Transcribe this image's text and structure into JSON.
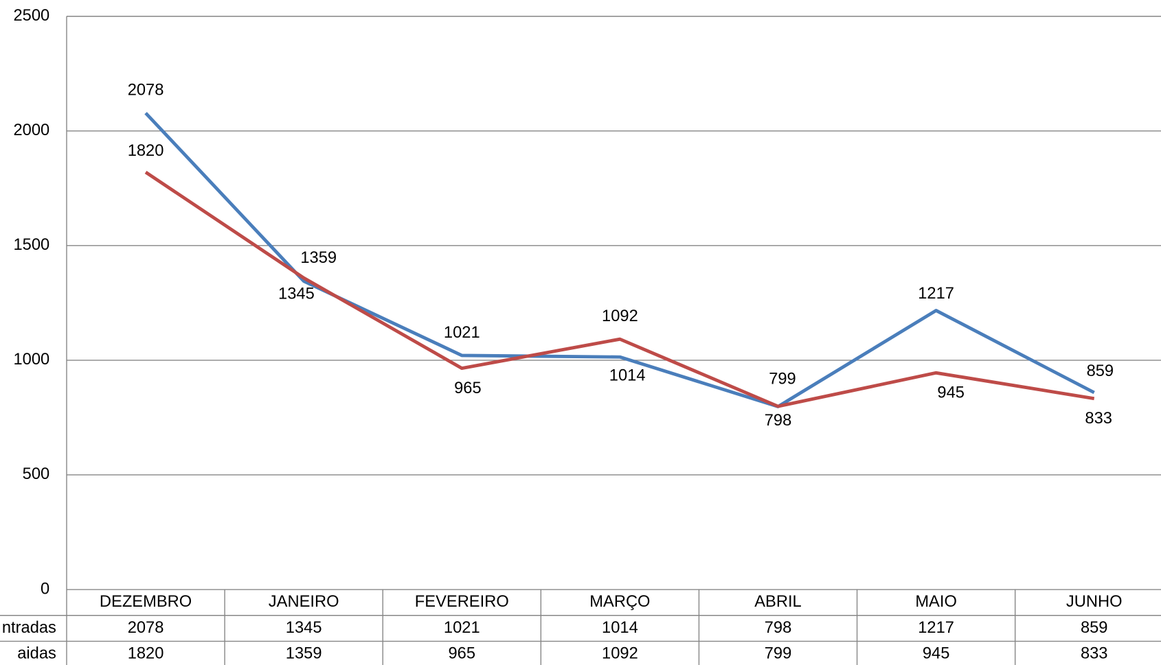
{
  "chart_data": {
    "type": "line",
    "categories": [
      "DEZEMBRO",
      "JANEIRO",
      "FEVEREIRO",
      "MARÇO",
      "ABRIL",
      "MAIO",
      "JUNHO"
    ],
    "series": [
      {
        "name": "ntradas",
        "color": "#4a7ebb",
        "values": [
          2078,
          1345,
          1021,
          1014,
          798,
          1217,
          859
        ]
      },
      {
        "name": "aidas",
        "color": "#be4b48",
        "values": [
          1820,
          1359,
          965,
          1092,
          799,
          945,
          833
        ]
      }
    ],
    "ylim": [
      0,
      2500
    ],
    "yticks": [
      0,
      500,
      1000,
      1500,
      2000,
      2500
    ],
    "grid": true,
    "data_table": true
  }
}
